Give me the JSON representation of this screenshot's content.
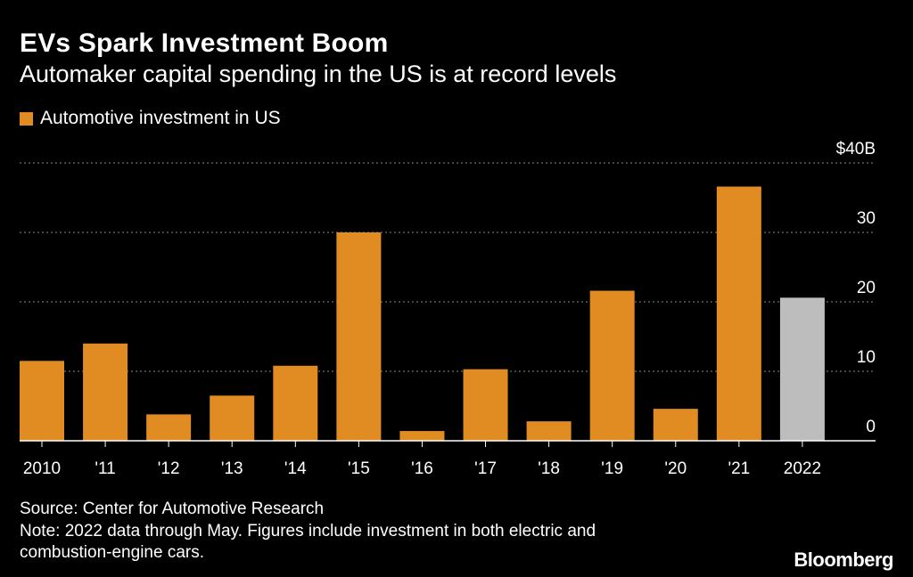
{
  "header": {
    "title": "EVs Spark Investment Boom",
    "subtitle": "Automaker capital spending in the US is at record levels"
  },
  "legend": {
    "label": "Automotive investment in US"
  },
  "footer": {
    "source": "Source: Center for Automotive Research",
    "note_line1": "Note: 2022 data through May. Figures include investment in both electric and",
    "note_line2": "combustion-engine cars."
  },
  "brand": "Bloomberg",
  "colors": {
    "primary": "#e08c23",
    "highlight": "#bdbdbd",
    "background": "#000000",
    "grid": "#888888"
  },
  "chart_data": {
    "type": "bar",
    "categories": [
      "2010",
      "'11",
      "'12",
      "'13",
      "'14",
      "'15",
      "'16",
      "'17",
      "'18",
      "'19",
      "'20",
      "'21",
      "2022"
    ],
    "values": [
      11.5,
      14,
      3.8,
      6.5,
      10.8,
      30,
      1.4,
      10.3,
      2.8,
      21.6,
      4.6,
      36.6,
      20.6
    ],
    "bar_colors": [
      "primary",
      "primary",
      "primary",
      "primary",
      "primary",
      "primary",
      "primary",
      "primary",
      "primary",
      "primary",
      "primary",
      "primary",
      "highlight"
    ],
    "series": [
      {
        "name": "Automotive investment in US"
      }
    ],
    "yticks": [
      0,
      10,
      20,
      30,
      40
    ],
    "ytick_labels": [
      "0",
      "10",
      "20",
      "30",
      "$40B"
    ],
    "ylim": [
      0,
      40
    ],
    "grid": true,
    "legend_position": "top-left",
    "title": "EVs Spark Investment Boom",
    "subtitle": "Automaker capital spending in the US is at record levels"
  }
}
